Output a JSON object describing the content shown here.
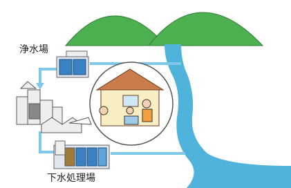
{
  "nodes": [
    {
      "label": "浄水場"
    },
    {
      "label": "下水処理場"
    }
  ]
}
